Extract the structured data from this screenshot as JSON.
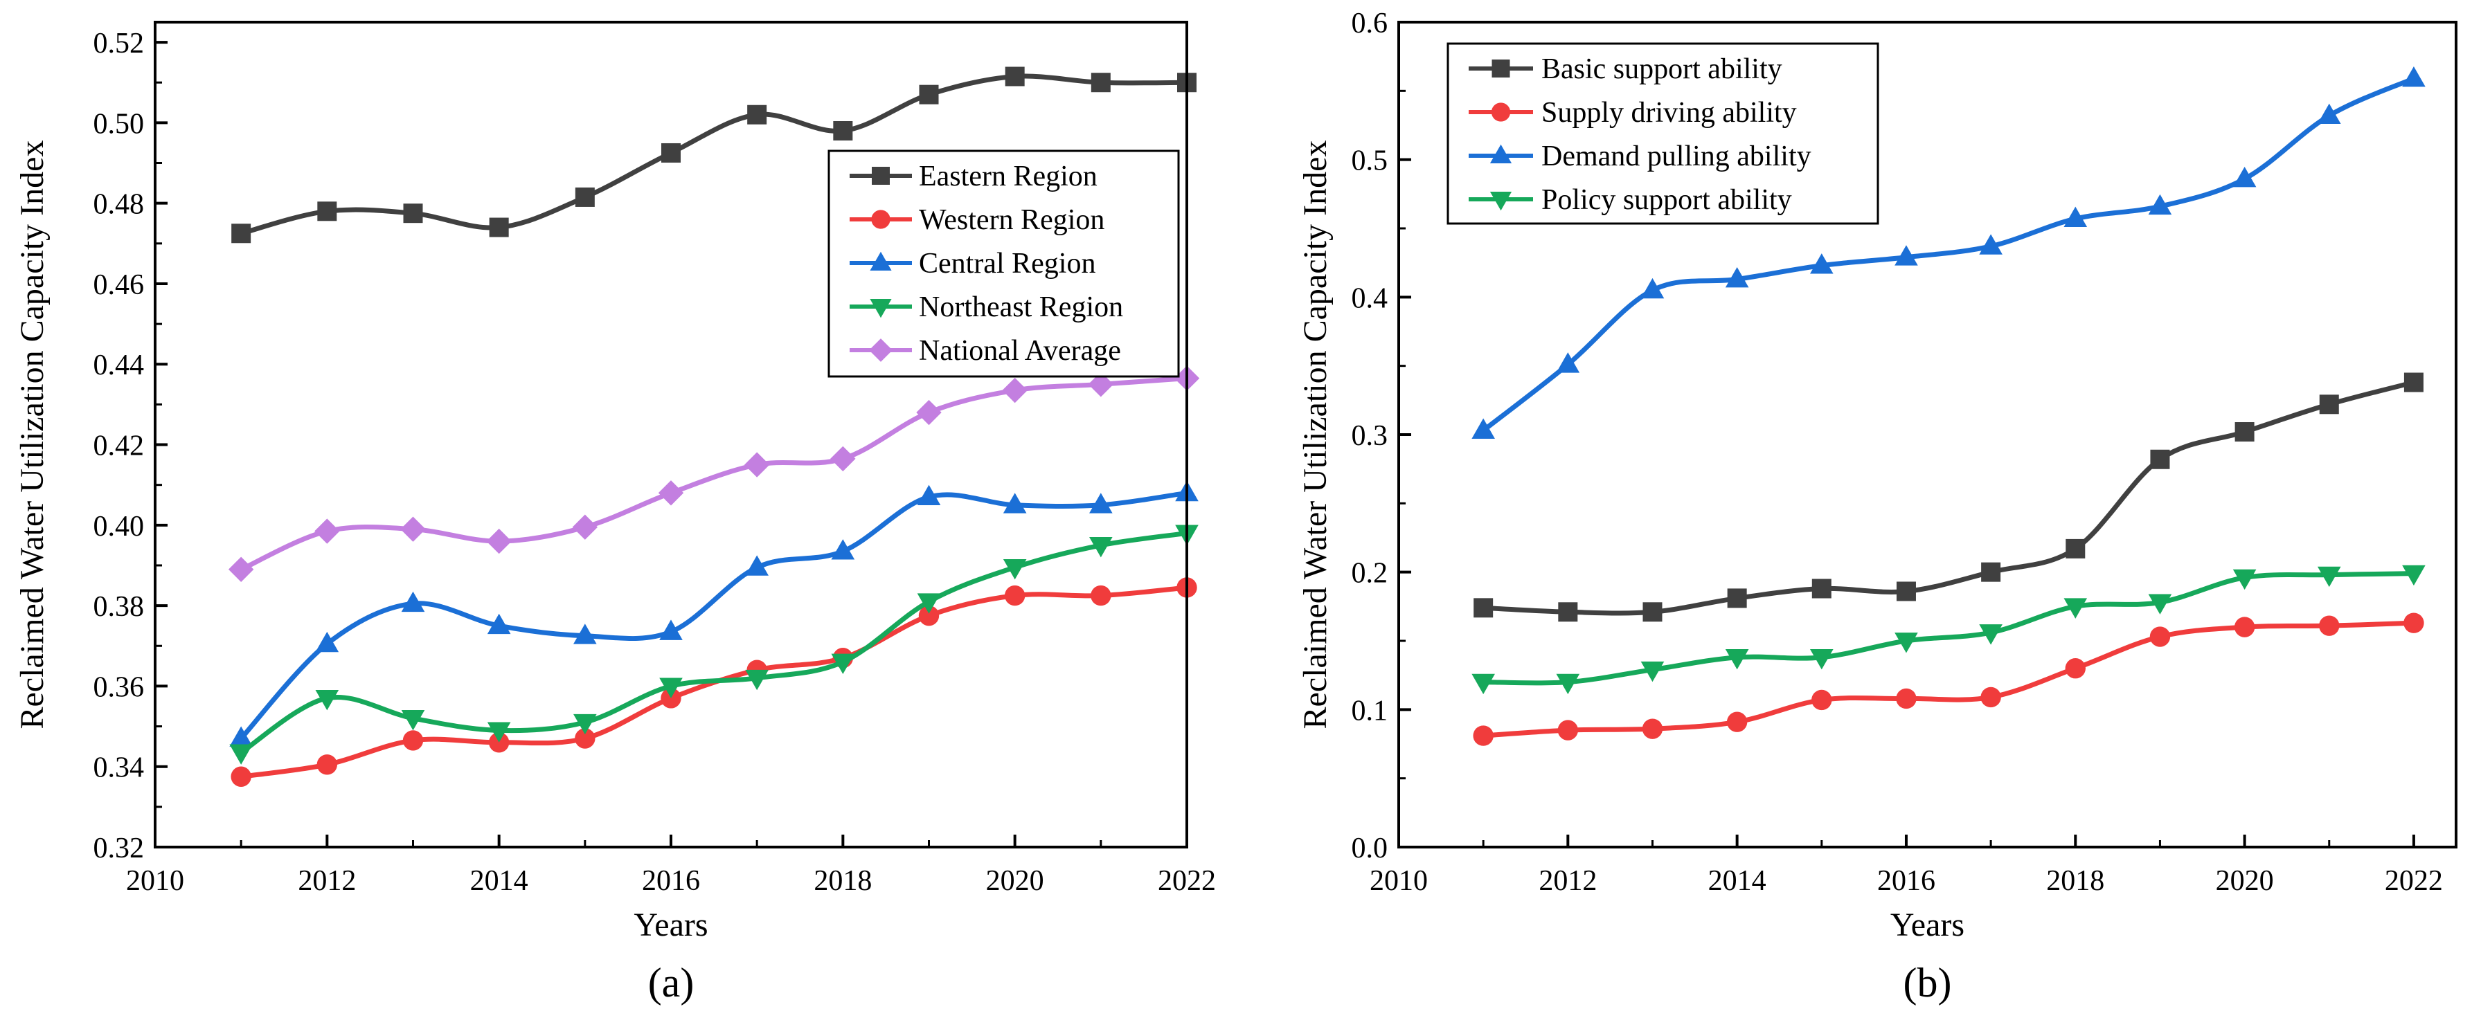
{
  "chart_data": [
    {
      "type": "line",
      "panel_label": "(a)",
      "xlabel": "Years",
      "ylabel": "Reclaimed Water Utilization Capacity Index",
      "xlim": [
        2010,
        2022
      ],
      "ylim": [
        0.32,
        0.525
      ],
      "xticks": [
        2010,
        2012,
        2014,
        2016,
        2018,
        2020,
        2022
      ],
      "yticks": [
        0.32,
        0.34,
        0.36,
        0.38,
        0.4,
        0.42,
        0.44,
        0.46,
        0.48,
        0.5,
        0.52
      ],
      "ytick_labels": [
        "0.32",
        "0.34",
        "0.36",
        "0.38",
        "0.40",
        "0.42",
        "0.44",
        "0.46",
        "0.48",
        "0.50",
        "0.52"
      ],
      "legend_position": "upper-right",
      "x": [
        2011,
        2012,
        2013,
        2014,
        2015,
        2016,
        2017,
        2018,
        2019,
        2020,
        2021,
        2022
      ],
      "series": [
        {
          "name": "Eastern Region",
          "color": "#404040",
          "marker": "square",
          "values": [
            0.4725,
            0.478,
            0.4775,
            0.474,
            0.4815,
            0.4925,
            0.502,
            0.498,
            0.507,
            0.5115,
            0.51,
            0.51
          ]
        },
        {
          "name": "Western Region",
          "color": "#f03c3c",
          "marker": "circle",
          "values": [
            0.3375,
            0.3405,
            0.3465,
            0.346,
            0.347,
            0.357,
            0.364,
            0.367,
            0.3775,
            0.3825,
            0.3825,
            0.3845
          ]
        },
        {
          "name": "Central Region",
          "color": "#1b6fd6",
          "marker": "triangle-up",
          "values": [
            0.347,
            0.3705,
            0.3805,
            0.375,
            0.3725,
            0.3735,
            0.3895,
            0.3935,
            0.407,
            0.405,
            0.405,
            0.408
          ]
        },
        {
          "name": "Northeast Region",
          "color": "#16a85a",
          "marker": "triangle-down",
          "values": [
            0.3435,
            0.357,
            0.352,
            0.349,
            0.351,
            0.36,
            0.362,
            0.366,
            0.381,
            0.3895,
            0.395,
            0.398
          ]
        },
        {
          "name": "National Average",
          "color": "#c37fe0",
          "marker": "diamond",
          "values": [
            0.389,
            0.3985,
            0.399,
            0.396,
            0.3995,
            0.408,
            0.415,
            0.4165,
            0.428,
            0.4335,
            0.435,
            0.4365
          ]
        }
      ]
    },
    {
      "type": "line",
      "panel_label": "(b)",
      "xlabel": "Years",
      "ylabel": "Reclaimed Water Utilization Capacity Index",
      "xlim": [
        2010,
        2022.5
      ],
      "ylim": [
        0.0,
        0.6
      ],
      "xticks": [
        2010,
        2012,
        2014,
        2016,
        2018,
        2020,
        2022
      ],
      "yticks": [
        0.0,
        0.1,
        0.2,
        0.3,
        0.4,
        0.5,
        0.6
      ],
      "ytick_labels": [
        "0.0",
        "0.1",
        "0.2",
        "0.3",
        "0.4",
        "0.5",
        "0.6"
      ],
      "legend_position": "upper-left",
      "x": [
        2011,
        2012,
        2013,
        2014,
        2015,
        2016,
        2017,
        2018,
        2019,
        2020,
        2021,
        2022
      ],
      "series": [
        {
          "name": "Basic support ability",
          "color": "#404040",
          "marker": "square",
          "values": [
            0.174,
            0.171,
            0.171,
            0.181,
            0.188,
            0.186,
            0.2,
            0.217,
            0.282,
            0.302,
            0.322,
            0.338
          ]
        },
        {
          "name": "Supply driving ability",
          "color": "#f03c3c",
          "marker": "circle",
          "values": [
            0.081,
            0.085,
            0.086,
            0.091,
            0.107,
            0.108,
            0.109,
            0.13,
            0.153,
            0.16,
            0.161,
            0.163
          ]
        },
        {
          "name": "Demand pulling ability",
          "color": "#1b6fd6",
          "marker": "triangle-up",
          "values": [
            0.303,
            0.351,
            0.405,
            0.413,
            0.423,
            0.429,
            0.437,
            0.457,
            0.466,
            0.486,
            0.532,
            0.559
          ]
        },
        {
          "name": "Policy support ability",
          "color": "#16a85a",
          "marker": "triangle-down",
          "values": [
            0.12,
            0.12,
            0.129,
            0.138,
            0.138,
            0.15,
            0.156,
            0.175,
            0.178,
            0.196,
            0.198,
            0.199
          ]
        }
      ]
    }
  ]
}
